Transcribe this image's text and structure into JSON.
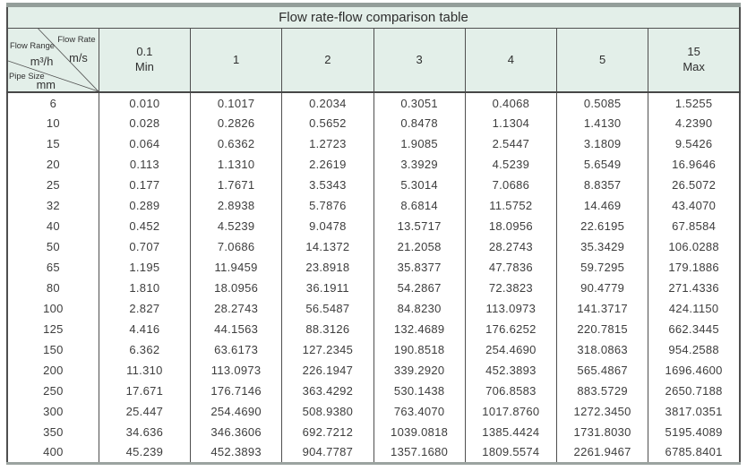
{
  "title": "Flow rate-flow comparison table",
  "corner": {
    "flow_rate_label": "Flow Rate",
    "flow_rate_unit": "m/s",
    "flow_range_label": "Flow Range",
    "flow_range_unit": "m³/h",
    "pipe_size_label": "Pipe Size",
    "pipe_size_unit": "mm"
  },
  "header": {
    "columns": [
      {
        "line1": "0.1",
        "line2": "Min"
      },
      {
        "line1": "1",
        "line2": null
      },
      {
        "line1": "2",
        "line2": null
      },
      {
        "line1": "3",
        "line2": null
      },
      {
        "line1": "4",
        "line2": null
      },
      {
        "line1": "5",
        "line2": null
      },
      {
        "line1": "15",
        "line2": "Max"
      }
    ]
  },
  "colors": {
    "header_bg": "#e3efe9",
    "border_inner": "#4f4f4f",
    "border_outer_top": "#949e9a",
    "border_outer_bottom": "#9ba3a0",
    "text": "#3d3d3d"
  },
  "chart_data": {
    "type": "table",
    "title": "Flow rate-flow comparison table",
    "row_header_label": "Pipe Size (mm)",
    "column_unit": "flow velocity m/s, values in m³/h",
    "velocities_m_per_s": [
      0.1,
      1,
      2,
      3,
      4,
      5,
      15
    ],
    "column_headers": [
      "0.1 Min",
      "1",
      "2",
      "3",
      "4",
      "5",
      "15 Max"
    ],
    "rows": [
      {
        "size": "6",
        "values": [
          "0.010",
          "0.1017",
          "0.2034",
          "0.3051",
          "0.4068",
          "0.5085",
          "1.5255"
        ]
      },
      {
        "size": "10",
        "values": [
          "0.028",
          "0.2826",
          "0.5652",
          "0.8478",
          "1.1304",
          "1.4130",
          "4.2390"
        ]
      },
      {
        "size": "15",
        "values": [
          "0.064",
          "0.6362",
          "1.2723",
          "1.9085",
          "2.5447",
          "3.1809",
          "9.5426"
        ]
      },
      {
        "size": "20",
        "values": [
          "0.113",
          "1.1310",
          "2.2619",
          "3.3929",
          "4.5239",
          "5.6549",
          "16.9646"
        ]
      },
      {
        "size": "25",
        "values": [
          "0.177",
          "1.7671",
          "3.5343",
          "5.3014",
          "7.0686",
          "8.8357",
          "26.5072"
        ]
      },
      {
        "size": "32",
        "values": [
          "0.289",
          "2.8938",
          "5.7876",
          "8.6814",
          "11.5752",
          "14.469",
          "43.4070"
        ]
      },
      {
        "size": "40",
        "values": [
          "0.452",
          "4.5239",
          "9.0478",
          "13.5717",
          "18.0956",
          "22.6195",
          "67.8584"
        ]
      },
      {
        "size": "50",
        "values": [
          "0.707",
          "7.0686",
          "14.1372",
          "21.2058",
          "28.2743",
          "35.3429",
          "106.0288"
        ]
      },
      {
        "size": "65",
        "values": [
          "1.195",
          "11.9459",
          "23.8918",
          "35.8377",
          "47.7836",
          "59.7295",
          "179.1886"
        ]
      },
      {
        "size": "80",
        "values": [
          "1.810",
          "18.0956",
          "36.1911",
          "54.2867",
          "72.3823",
          "90.4779",
          "271.4336"
        ]
      },
      {
        "size": "100",
        "values": [
          "2.827",
          "28.2743",
          "56.5487",
          "84.8230",
          "113.0973",
          "141.3717",
          "424.1150"
        ]
      },
      {
        "size": "125",
        "values": [
          "4.416",
          "44.1563",
          "88.3126",
          "132.4689",
          "176.6252",
          "220.7815",
          "662.3445"
        ]
      },
      {
        "size": "150",
        "values": [
          "6.362",
          "63.6173",
          "127.2345",
          "190.8518",
          "254.4690",
          "318.0863",
          "954.2588"
        ]
      },
      {
        "size": "200",
        "values": [
          "11.310",
          "113.0973",
          "226.1947",
          "339.2920",
          "452.3893",
          "565.4867",
          "1696.4600"
        ]
      },
      {
        "size": "250",
        "values": [
          "17.671",
          "176.7146",
          "363.4292",
          "530.1438",
          "706.8583",
          "883.5729",
          "2650.7188"
        ]
      },
      {
        "size": "300",
        "values": [
          "25.447",
          "254.4690",
          "508.9380",
          "763.4070",
          "1017.8760",
          "1272.3450",
          "3817.0351"
        ]
      },
      {
        "size": "350",
        "values": [
          "34.636",
          "346.3606",
          "692.7212",
          "1039.0818",
          "1385.4424",
          "1731.8030",
          "5195.4089"
        ]
      },
      {
        "size": "400",
        "values": [
          "45.239",
          "452.3893",
          "904.7787",
          "1357.1680",
          "1809.5574",
          "2261.9467",
          "6785.8401"
        ]
      }
    ]
  }
}
